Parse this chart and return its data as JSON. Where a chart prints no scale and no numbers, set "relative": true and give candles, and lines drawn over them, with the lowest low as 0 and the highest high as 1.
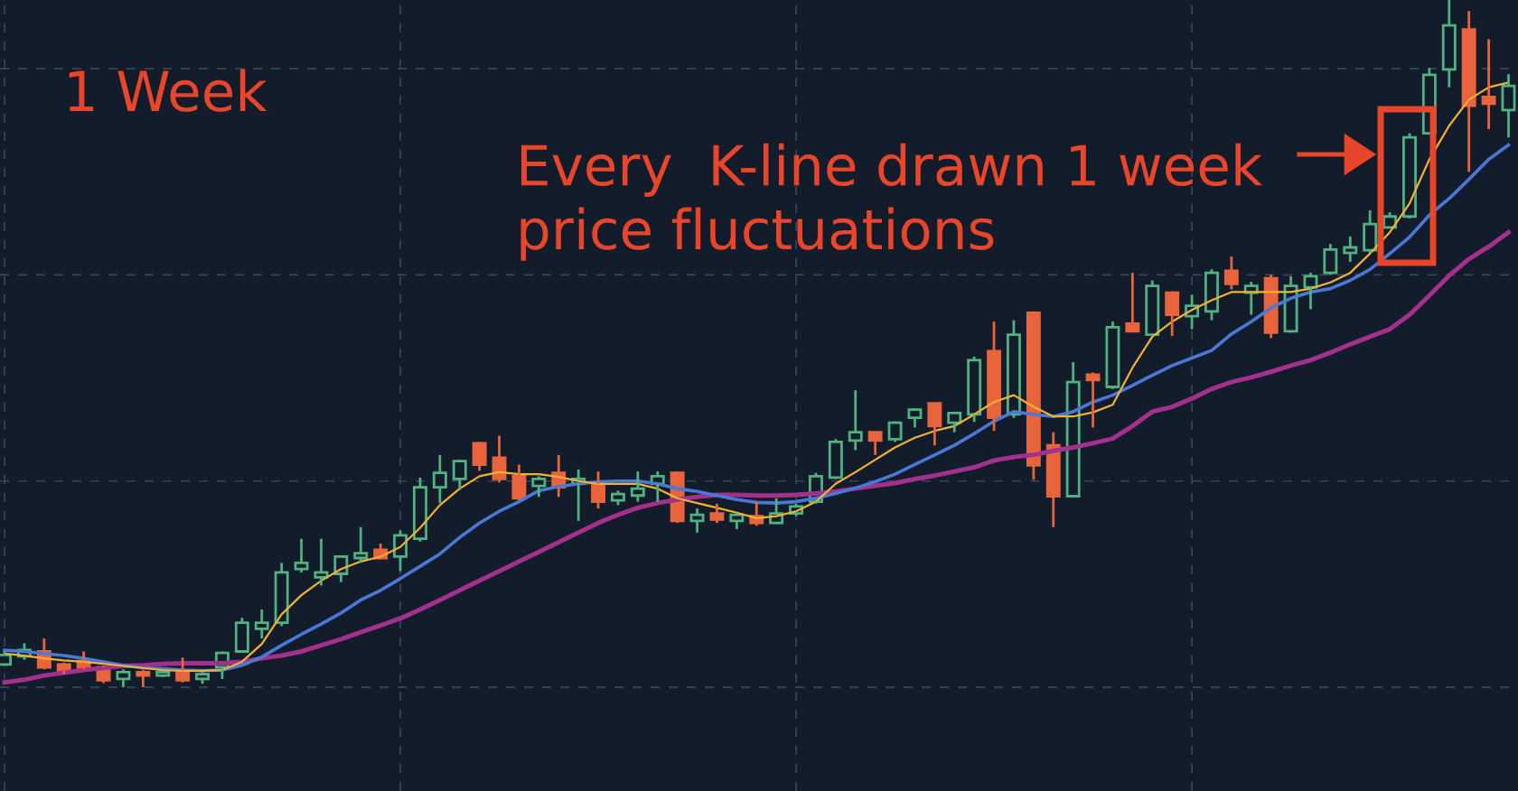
{
  "chart_data": {
    "type": "candlestick",
    "relative": true,
    "grid": true,
    "categories": [
      null,
      null,
      null,
      null,
      null,
      null,
      null,
      null,
      null,
      null,
      null,
      null,
      null,
      null,
      null,
      null,
      null,
      null,
      null,
      null,
      null,
      null,
      null,
      null,
      null,
      null,
      null,
      null,
      null,
      null,
      null,
      null,
      null,
      null,
      null,
      null,
      null,
      null,
      null,
      null,
      null,
      null,
      null,
      null,
      null,
      null,
      null,
      null,
      null,
      null,
      null,
      null,
      null,
      null,
      null,
      null,
      null,
      null,
      null,
      null,
      null,
      null,
      null,
      null,
      null,
      null,
      null,
      null,
      null,
      null,
      null,
      null,
      null,
      null,
      null,
      null,
      null
    ],
    "ohlc": [
      [
        0.033,
        0.052,
        0.031,
        0.047
      ],
      [
        0.045,
        0.064,
        0.04,
        0.054
      ],
      [
        0.052,
        0.071,
        0.026,
        0.029
      ],
      [
        0.033,
        0.036,
        0.019,
        0.024
      ],
      [
        0.038,
        0.052,
        0.026,
        0.029
      ],
      [
        0.029,
        0.031,
        0.006,
        0.01
      ],
      [
        0.012,
        0.026,
        0.0,
        0.022
      ],
      [
        0.022,
        0.025,
        0.0,
        0.017
      ],
      [
        0.017,
        0.024,
        0.015,
        0.022
      ],
      [
        0.024,
        0.043,
        0.007,
        0.01
      ],
      [
        0.012,
        0.022,
        0.005,
        0.019
      ],
      [
        0.029,
        0.052,
        0.012,
        0.05
      ],
      [
        0.052,
        0.101,
        0.05,
        0.094
      ],
      [
        0.085,
        0.113,
        0.071,
        0.094
      ],
      [
        0.094,
        0.181,
        0.089,
        0.167
      ],
      [
        0.172,
        0.216,
        0.167,
        0.181
      ],
      [
        0.16,
        0.216,
        0.148,
        0.167
      ],
      [
        0.165,
        0.19,
        0.153,
        0.19
      ],
      [
        0.188,
        0.233,
        0.181,
        0.195
      ],
      [
        0.2,
        0.209,
        0.186,
        0.188
      ],
      [
        0.19,
        0.228,
        0.169,
        0.221
      ],
      [
        0.216,
        0.305,
        0.212,
        0.291
      ],
      [
        0.291,
        0.338,
        0.268,
        0.312
      ],
      [
        0.303,
        0.331,
        0.287,
        0.329
      ],
      [
        0.355,
        0.357,
        0.315,
        0.324
      ],
      [
        0.334,
        0.366,
        0.298,
        0.303
      ],
      [
        0.307,
        0.324,
        0.272,
        0.275
      ],
      [
        0.293,
        0.307,
        0.277,
        0.303
      ],
      [
        0.312,
        0.338,
        0.277,
        0.291
      ],
      [
        0.296,
        0.317,
        0.242,
        0.303
      ],
      [
        0.296,
        0.314,
        0.26,
        0.27
      ],
      [
        0.272,
        0.286,
        0.265,
        0.281
      ],
      [
        0.279,
        0.314,
        0.27,
        0.289
      ],
      [
        0.296,
        0.314,
        0.27,
        0.307
      ],
      [
        0.312,
        0.314,
        0.239,
        0.242
      ],
      [
        0.242,
        0.26,
        0.225,
        0.251
      ],
      [
        0.253,
        0.267,
        0.239,
        0.244
      ],
      [
        0.242,
        0.253,
        0.23,
        0.251
      ],
      [
        0.249,
        0.27,
        0.235,
        0.239
      ],
      [
        0.239,
        0.275,
        0.237,
        0.253
      ],
      [
        0.253,
        0.267,
        0.249,
        0.263
      ],
      [
        0.27,
        0.312,
        0.267,
        0.307
      ],
      [
        0.305,
        0.361,
        0.303,
        0.357
      ],
      [
        0.359,
        0.432,
        0.345,
        0.371
      ],
      [
        0.371,
        0.371,
        0.338,
        0.359
      ],
      [
        0.361,
        0.387,
        0.357,
        0.385
      ],
      [
        0.392,
        0.406,
        0.378,
        0.404
      ],
      [
        0.413,
        0.413,
        0.352,
        0.38
      ],
      [
        0.385,
        0.401,
        0.371,
        0.399
      ],
      [
        0.397,
        0.481,
        0.386,
        0.476
      ],
      [
        0.489,
        0.532,
        0.373,
        0.392
      ],
      [
        0.397,
        0.534,
        0.392,
        0.513
      ],
      [
        0.545,
        0.547,
        0.302,
        0.323
      ],
      [
        0.352,
        0.371,
        0.233,
        0.278
      ],
      [
        0.278,
        0.473,
        0.276,
        0.444
      ],
      [
        0.455,
        0.458,
        0.378,
        0.447
      ],
      [
        0.437,
        0.532,
        0.434,
        0.524
      ],
      [
        0.529,
        0.603,
        0.518,
        0.518
      ],
      [
        0.513,
        0.592,
        0.511,
        0.584
      ],
      [
        0.574,
        0.576,
        0.511,
        0.542
      ],
      [
        0.54,
        0.571,
        0.521,
        0.555
      ],
      [
        0.547,
        0.608,
        0.534,
        0.603
      ],
      [
        0.606,
        0.627,
        0.579,
        0.587
      ],
      [
        0.574,
        0.59,
        0.542,
        0.584
      ],
      [
        0.595,
        0.6,
        0.508,
        0.516
      ],
      [
        0.518,
        0.598,
        0.516,
        0.584
      ],
      [
        0.582,
        0.603,
        0.55,
        0.598
      ],
      [
        0.603,
        0.645,
        0.6,
        0.637
      ],
      [
        0.632,
        0.656,
        0.619,
        0.64
      ],
      [
        0.636,
        0.694,
        0.632,
        0.674
      ],
      [
        0.669,
        0.691,
        0.668,
        0.685
      ],
      [
        0.685,
        0.806,
        0.682,
        0.8
      ],
      [
        0.806,
        0.901,
        0.806,
        0.891
      ],
      [
        0.899,
        1.0,
        0.873,
        0.963
      ],
      [
        0.957,
        0.984,
        0.75,
        0.846
      ],
      [
        0.859,
        0.943,
        0.812,
        0.849
      ],
      [
        0.84,
        0.892,
        0.8,
        0.875
      ]
    ],
    "colors": [
      "#4fb381",
      "#4fb381",
      "#e8643c",
      "#e8643c",
      "#e8643c",
      "#e8643c",
      "#4fb381",
      "#e8643c",
      "#4fb381",
      "#e8643c",
      "#4fb381",
      "#4fb381",
      "#4fb381",
      "#4fb381",
      "#4fb381",
      "#4fb381",
      "#4fb381",
      "#4fb381",
      "#4fb381",
      "#e8643c",
      "#4fb381",
      "#4fb381",
      "#4fb381",
      "#4fb381",
      "#e8643c",
      "#e8643c",
      "#e8643c",
      "#4fb381",
      "#e8643c",
      "#4fb381",
      "#e8643c",
      "#4fb381",
      "#4fb381",
      "#4fb381",
      "#e8643c",
      "#4fb381",
      "#e8643c",
      "#4fb381",
      "#e8643c",
      "#4fb381",
      "#4fb381",
      "#4fb381",
      "#4fb381",
      "#4fb381",
      "#e8643c",
      "#4fb381",
      "#4fb381",
      "#e8643c",
      "#4fb381",
      "#4fb381",
      "#e8643c",
      "#4fb381",
      "#e8643c",
      "#e8643c",
      "#4fb381",
      "#e8643c",
      "#4fb381",
      "#e8643c",
      "#4fb381",
      "#e8643c",
      "#4fb381",
      "#4fb381",
      "#e8643c",
      "#4fb381",
      "#e8643c",
      "#4fb381",
      "#4fb381",
      "#4fb381",
      "#4fb381",
      "#4fb381",
      "#4fb381",
      "#4fb381",
      "#4fb381",
      "#4fb381",
      "#e8643c",
      "#e8643c",
      "#4fb381"
    ],
    "series": [
      {
        "type": "line",
        "color": "#f2b134",
        "values": [
          0.049,
          0.046,
          0.042,
          0.039,
          0.037,
          0.034,
          0.031,
          0.028,
          0.025,
          0.024,
          0.024,
          0.025,
          0.037,
          0.063,
          0.106,
          0.134,
          0.155,
          0.172,
          0.183,
          0.19,
          0.204,
          0.232,
          0.265,
          0.289,
          0.307,
          0.313,
          0.31,
          0.31,
          0.306,
          0.3,
          0.296,
          0.296,
          0.296,
          0.289,
          0.275,
          0.268,
          0.261,
          0.254,
          0.246,
          0.249,
          0.256,
          0.27,
          0.296,
          0.313,
          0.331,
          0.349,
          0.363,
          0.373,
          0.38,
          0.397,
          0.415,
          0.425,
          0.408,
          0.394,
          0.394,
          0.4,
          0.411,
          0.465,
          0.51,
          0.532,
          0.549,
          0.563,
          0.575,
          0.575,
          0.575,
          0.575,
          0.58,
          0.589,
          0.603,
          0.631,
          0.662,
          0.704,
          0.768,
          0.817,
          0.855,
          0.873,
          0.88
        ]
      },
      {
        "type": "line",
        "color": "#4a78d6",
        "values": [
          0.054,
          0.052,
          0.049,
          0.046,
          0.042,
          0.037,
          0.032,
          0.028,
          0.027,
          0.025,
          0.024,
          0.025,
          0.032,
          0.044,
          0.061,
          0.077,
          0.092,
          0.108,
          0.127,
          0.141,
          0.158,
          0.176,
          0.194,
          0.218,
          0.239,
          0.256,
          0.27,
          0.286,
          0.292,
          0.296,
          0.299,
          0.3,
          0.3,
          0.296,
          0.289,
          0.285,
          0.279,
          0.273,
          0.269,
          0.268,
          0.27,
          0.275,
          0.282,
          0.29,
          0.299,
          0.31,
          0.324,
          0.338,
          0.352,
          0.369,
          0.387,
          0.401,
          0.397,
          0.394,
          0.401,
          0.415,
          0.425,
          0.439,
          0.454,
          0.468,
          0.479,
          0.49,
          0.514,
          0.532,
          0.552,
          0.566,
          0.575,
          0.58,
          0.592,
          0.608,
          0.631,
          0.655,
          0.687,
          0.711,
          0.739,
          0.768,
          0.789
        ]
      },
      {
        "type": "line",
        "color": "#a3308c",
        "values": [
          0.007,
          0.011,
          0.017,
          0.021,
          0.025,
          0.028,
          0.031,
          0.032,
          0.034,
          0.035,
          0.035,
          0.035,
          0.037,
          0.042,
          0.046,
          0.052,
          0.061,
          0.07,
          0.08,
          0.09,
          0.1,
          0.113,
          0.127,
          0.141,
          0.155,
          0.169,
          0.183,
          0.197,
          0.211,
          0.225,
          0.239,
          0.251,
          0.261,
          0.268,
          0.273,
          0.277,
          0.28,
          0.28,
          0.279,
          0.279,
          0.28,
          0.282,
          0.285,
          0.289,
          0.293,
          0.297,
          0.303,
          0.308,
          0.314,
          0.32,
          0.33,
          0.335,
          0.338,
          0.344,
          0.349,
          0.355,
          0.362,
          0.38,
          0.401,
          0.408,
          0.42,
          0.434,
          0.444,
          0.451,
          0.459,
          0.468,
          0.476,
          0.487,
          0.499,
          0.51,
          0.521,
          0.542,
          0.57,
          0.599,
          0.623,
          0.641,
          0.662
        ]
      }
    ],
    "annotations": [
      "1 Week",
      "Every  K-line drawn 1 week\nprice fluctuations"
    ]
  }
}
